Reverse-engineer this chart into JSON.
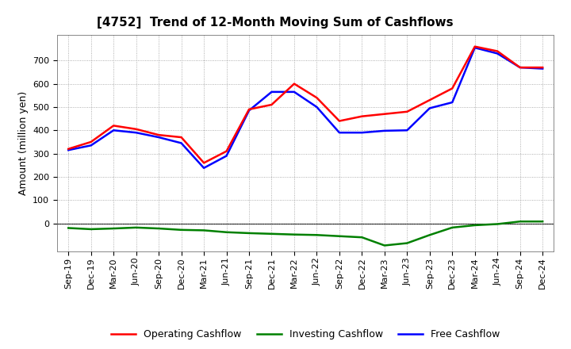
{
  "title": "[4752]  Trend of 12-Month Moving Sum of Cashflows",
  "ylabel": "Amount (million yen)",
  "x_labels": [
    "Sep-19",
    "Dec-19",
    "Mar-20",
    "Jun-20",
    "Sep-20",
    "Dec-20",
    "Mar-21",
    "Jun-21",
    "Sep-21",
    "Dec-21",
    "Mar-22",
    "Jun-22",
    "Sep-22",
    "Dec-22",
    "Mar-23",
    "Jun-23",
    "Sep-23",
    "Dec-23",
    "Mar-24",
    "Jun-24",
    "Sep-24",
    "Dec-24"
  ],
  "operating_cashflow": [
    320,
    350,
    420,
    405,
    380,
    370,
    260,
    310,
    490,
    510,
    600,
    540,
    440,
    460,
    470,
    480,
    530,
    580,
    760,
    740,
    670,
    670
  ],
  "investing_cashflow": [
    -20,
    -25,
    -22,
    -18,
    -22,
    -28,
    -30,
    -38,
    -42,
    -45,
    -48,
    -50,
    -55,
    -60,
    -95,
    -85,
    -50,
    -18,
    -8,
    -3,
    8,
    8
  ],
  "free_cashflow": [
    315,
    335,
    400,
    390,
    370,
    345,
    238,
    290,
    485,
    565,
    565,
    500,
    390,
    390,
    398,
    400,
    495,
    520,
    755,
    730,
    670,
    665
  ],
  "operating_color": "#FF0000",
  "investing_color": "#008000",
  "free_color": "#0000FF",
  "ylim_min": -120,
  "ylim_max": 810,
  "yticks": [
    0,
    100,
    200,
    300,
    400,
    500,
    600,
    700
  ],
  "background_color": "#FFFFFF",
  "grid_color": "#999999",
  "title_fontsize": 11,
  "axis_label_fontsize": 9,
  "tick_fontsize": 8,
  "legend_fontsize": 9,
  "line_width": 1.8
}
